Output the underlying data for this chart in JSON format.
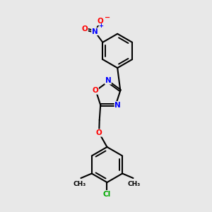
{
  "bg_color": "#e8e8e8",
  "bond_color": "#000000",
  "atom_colors": {
    "N": "#0000ff",
    "O": "#ff0000",
    "Cl": "#00aa00",
    "C": "#000000"
  }
}
